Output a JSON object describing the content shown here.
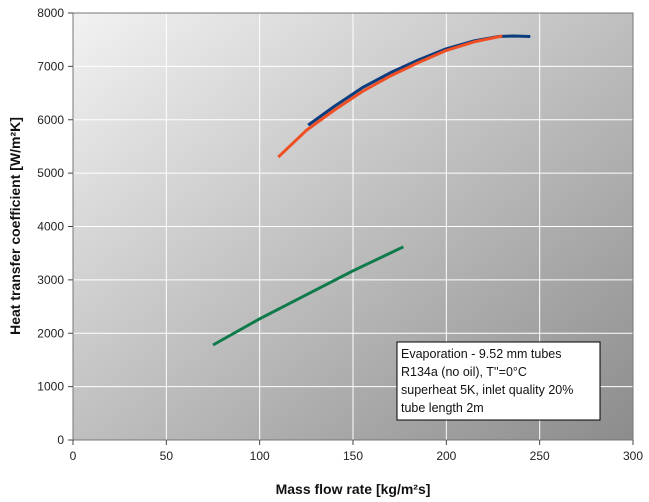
{
  "chart_data": {
    "type": "line",
    "xlabel": "Mass flow rate [kg/m²s]",
    "ylabel": "Heat transfer coefficient [W/m²K]",
    "xlim": [
      0,
      300
    ],
    "ylim": [
      0,
      8000
    ],
    "x_ticks": [
      0,
      50,
      100,
      150,
      200,
      250,
      300
    ],
    "y_ticks": [
      0,
      1000,
      2000,
      3000,
      4000,
      5000,
      6000,
      7000,
      8000
    ],
    "grid": true,
    "series": [
      {
        "color": "#0b3c7d",
        "x": [
          126,
          140,
          155,
          170,
          185,
          200,
          215,
          228,
          236,
          245
        ],
        "y": [
          5900,
          6250,
          6600,
          6880,
          7120,
          7330,
          7480,
          7560,
          7570,
          7560
        ]
      },
      {
        "color": "#f04e23",
        "x": [
          110,
          125,
          140,
          155,
          170,
          185,
          200,
          215,
          230
        ],
        "y": [
          5300,
          5800,
          6180,
          6530,
          6820,
          7070,
          7300,
          7460,
          7570
        ]
      },
      {
        "color": "#0f7a4a",
        "x": [
          75,
          100,
          125,
          150,
          177
        ],
        "y": [
          1780,
          2270,
          2720,
          3170,
          3620
        ]
      }
    ],
    "annotation": [
      "Evaporation  -  9.52 mm  tubes",
      "R134a (no oil), T''=0°C",
      "superheat 5K, inlet quality 20%",
      "tube length 2m"
    ]
  }
}
